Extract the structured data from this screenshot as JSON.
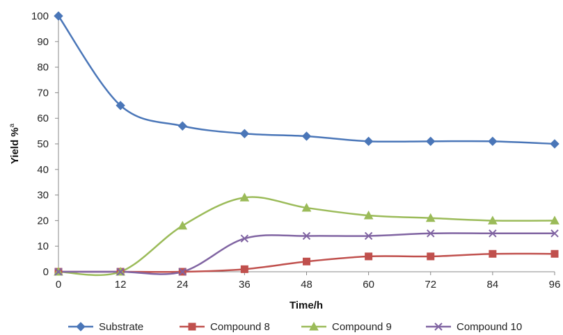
{
  "chart_data": {
    "type": "line",
    "xlabel": "Time/h",
    "ylabel": "Yield %",
    "ylabel_superscript": "a",
    "x": [
      0,
      12,
      24,
      36,
      48,
      60,
      72,
      84,
      96
    ],
    "xlim": [
      0,
      96
    ],
    "ylim": [
      0,
      100
    ],
    "x_ticks": [
      "0",
      "12",
      "24",
      "36",
      "48",
      "60",
      "72",
      "84",
      "96"
    ],
    "y_ticks": [
      "0",
      "10",
      "20",
      "30",
      "40",
      "50",
      "60",
      "70",
      "80",
      "90",
      "100"
    ],
    "grid": false,
    "smooth": true,
    "legend_position": "bottom",
    "series": [
      {
        "name": "Substrate",
        "color": "#4A76B8",
        "marker": "diamond",
        "values": [
          100,
          65,
          57,
          54,
          53,
          51,
          51,
          51,
          50
        ]
      },
      {
        "name": "Compound 8",
        "color": "#C0504D",
        "marker": "square",
        "values": [
          0,
          0,
          0,
          1,
          4,
          6,
          6,
          7,
          7
        ]
      },
      {
        "name": "Compound 9",
        "color": "#9BBB59",
        "marker": "triangle",
        "values": [
          0,
          0,
          18,
          29,
          25,
          22,
          21,
          20,
          20
        ]
      },
      {
        "name": "Compound 10",
        "color": "#8064A2",
        "marker": "x",
        "values": [
          0,
          0,
          0,
          13,
          14,
          14,
          15,
          15,
          15
        ]
      }
    ]
  }
}
